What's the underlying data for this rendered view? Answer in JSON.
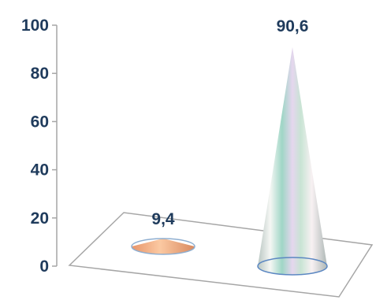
{
  "chart_data": {
    "type": "bar",
    "style": "3d-cone",
    "categories": [
      "",
      ""
    ],
    "values": [
      9.4,
      90.6
    ],
    "data_labels": [
      "9,4",
      "90,6"
    ],
    "title": "",
    "xlabel": "",
    "ylabel": "",
    "ylim": [
      0,
      100
    ],
    "y_ticks": [
      0,
      20,
      40,
      60,
      80,
      100
    ],
    "y_tick_labels": [
      "0",
      "20",
      "40",
      "60",
      "80",
      "100"
    ],
    "grid": false,
    "legend": "none",
    "colors": {
      "series_1": "#f4b183",
      "series_2": "#d9ecd6",
      "axis": "#a6a6a6",
      "label_text": "#1f3b5c"
    }
  }
}
